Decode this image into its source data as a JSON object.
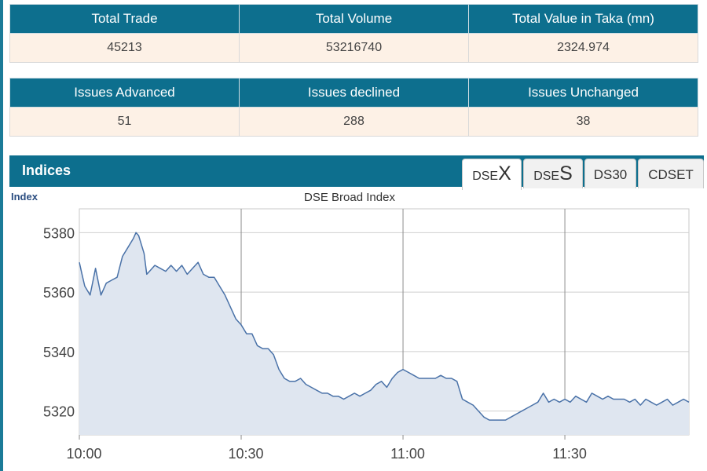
{
  "summary": {
    "headers": [
      "Total Trade",
      "Total Volume",
      "Total Value in Taka (mn)"
    ],
    "values": [
      "45213",
      "53216740",
      "2324.974"
    ]
  },
  "issues": {
    "headers": [
      "Issues Advanced",
      "Issues declined",
      "Issues Unchanged"
    ],
    "values": [
      "51",
      "288",
      "38"
    ]
  },
  "indices": {
    "title": "Indices",
    "tabs": [
      {
        "prefix": "DSE",
        "suffix": "X",
        "active": true
      },
      {
        "prefix": "DSE",
        "suffix": "S",
        "active": false
      },
      {
        "prefix": "DS30",
        "suffix": "",
        "active": false
      },
      {
        "prefix": "CDSET",
        "suffix": "",
        "active": false
      }
    ]
  },
  "colors": {
    "header_bg": "#0d6f8e",
    "row_bg": "#fdf1e6",
    "line": "#4a72a8",
    "area": "#dfe6f0"
  },
  "chart_data": {
    "type": "area",
    "title": "DSE Broad Index",
    "ylabel": "Index",
    "xlabel": "",
    "x_ticks": [
      "10:00",
      "10:30",
      "11:00",
      "11:30"
    ],
    "y_ticks": [
      5320,
      5340,
      5360,
      5380
    ],
    "ylim": [
      5312,
      5388
    ],
    "x_unit": "minutes after 10:00",
    "xlim": [
      0,
      113
    ],
    "grid": true,
    "series": [
      {
        "points": [
          [
            0,
            5370
          ],
          [
            0.5,
            5366
          ],
          [
            1,
            5362
          ],
          [
            2,
            5359
          ],
          [
            3,
            5368
          ],
          [
            4,
            5359
          ],
          [
            5,
            5363
          ],
          [
            6,
            5364
          ],
          [
            7,
            5365
          ],
          [
            8,
            5372
          ],
          [
            9,
            5375
          ],
          [
            10,
            5378
          ],
          [
            10.5,
            5380
          ],
          [
            11,
            5379
          ],
          [
            12,
            5373
          ],
          [
            12.5,
            5366
          ],
          [
            13,
            5367
          ],
          [
            14,
            5369
          ],
          [
            15,
            5368
          ],
          [
            16,
            5367
          ],
          [
            17,
            5369
          ],
          [
            18,
            5367
          ],
          [
            19,
            5369
          ],
          [
            20,
            5366
          ],
          [
            21,
            5368
          ],
          [
            22,
            5370
          ],
          [
            23,
            5366
          ],
          [
            24,
            5365
          ],
          [
            25,
            5365
          ],
          [
            26,
            5362
          ],
          [
            27,
            5359
          ],
          [
            28,
            5355
          ],
          [
            29,
            5351
          ],
          [
            30,
            5349
          ],
          [
            31,
            5346
          ],
          [
            32,
            5346
          ],
          [
            33,
            5342
          ],
          [
            34,
            5341
          ],
          [
            35,
            5341
          ],
          [
            36,
            5339
          ],
          [
            37,
            5334
          ],
          [
            38,
            5331
          ],
          [
            39,
            5330
          ],
          [
            40,
            5330
          ],
          [
            41,
            5331
          ],
          [
            42,
            5329
          ],
          [
            43,
            5328
          ],
          [
            44,
            5327
          ],
          [
            45,
            5326
          ],
          [
            46,
            5326
          ],
          [
            47,
            5325
          ],
          [
            48,
            5325
          ],
          [
            49,
            5324
          ],
          [
            50,
            5325
          ],
          [
            51,
            5326
          ],
          [
            52,
            5325
          ],
          [
            53,
            5326
          ],
          [
            54,
            5327
          ],
          [
            55,
            5329
          ],
          [
            56,
            5330
          ],
          [
            57,
            5328
          ],
          [
            58,
            5331
          ],
          [
            59,
            5333
          ],
          [
            60,
            5334
          ],
          [
            61,
            5333
          ],
          [
            62,
            5332
          ],
          [
            63,
            5331
          ],
          [
            64,
            5331
          ],
          [
            65,
            5331
          ],
          [
            66,
            5331
          ],
          [
            67,
            5332
          ],
          [
            68,
            5331
          ],
          [
            69,
            5331
          ],
          [
            70,
            5330
          ],
          [
            71,
            5324
          ],
          [
            72,
            5323
          ],
          [
            73,
            5322
          ],
          [
            74,
            5320
          ],
          [
            75,
            5318
          ],
          [
            76,
            5317
          ],
          [
            77,
            5317
          ],
          [
            78,
            5317
          ],
          [
            79,
            5317
          ],
          [
            80,
            5318
          ],
          [
            81,
            5319
          ],
          [
            82,
            5320
          ],
          [
            83,
            5321
          ],
          [
            84,
            5322
          ],
          [
            85,
            5323
          ],
          [
            86,
            5326
          ],
          [
            87,
            5323
          ],
          [
            88,
            5324
          ],
          [
            89,
            5323
          ],
          [
            90,
            5324
          ],
          [
            91,
            5323
          ],
          [
            92,
            5325
          ],
          [
            93,
            5324
          ],
          [
            94,
            5323
          ],
          [
            95,
            5326
          ],
          [
            96,
            5325
          ],
          [
            97,
            5324
          ],
          [
            98,
            5325
          ],
          [
            99,
            5324
          ],
          [
            100,
            5324
          ],
          [
            101,
            5324
          ],
          [
            102,
            5323
          ],
          [
            103,
            5324
          ],
          [
            104,
            5322
          ],
          [
            105,
            5324
          ],
          [
            106,
            5323
          ],
          [
            107,
            5322
          ],
          [
            108,
            5323
          ],
          [
            109,
            5324
          ],
          [
            110,
            5322
          ],
          [
            111,
            5323
          ],
          [
            112,
            5324
          ],
          [
            113,
            5323
          ]
        ]
      }
    ]
  }
}
